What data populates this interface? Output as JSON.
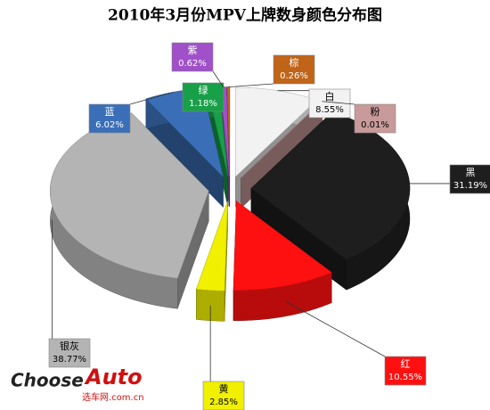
{
  "chart_data": {
    "type": "pie",
    "title": "2010年3月份MPV上牌数身颜色分布图",
    "categories": [
      "白",
      "粉",
      "黑",
      "红",
      "黄",
      "银灰",
      "蓝",
      "绿",
      "紫",
      "棕"
    ],
    "values": [
      8.55,
      0.01,
      31.19,
      10.55,
      2.85,
      38.77,
      6.02,
      1.18,
      0.62,
      0.26
    ],
    "value_labels": [
      "8.55%",
      "0.01%",
      "31.19%",
      "10.55%",
      "2.85%",
      "38.77%",
      "6.02%",
      "1.18%",
      "0.62%",
      "0.26%"
    ],
    "colors": [
      "#f2f2f2",
      "#c89a9a",
      "#1e1e1e",
      "#ff1010",
      "#f0f000",
      "#b4b4b4",
      "#3a6fb8",
      "#18a048",
      "#a050c8",
      "#c06418"
    ]
  },
  "logo": {
    "main": "Choose",
    "accent": "Auto",
    "sub": "选车网.com.cn"
  }
}
